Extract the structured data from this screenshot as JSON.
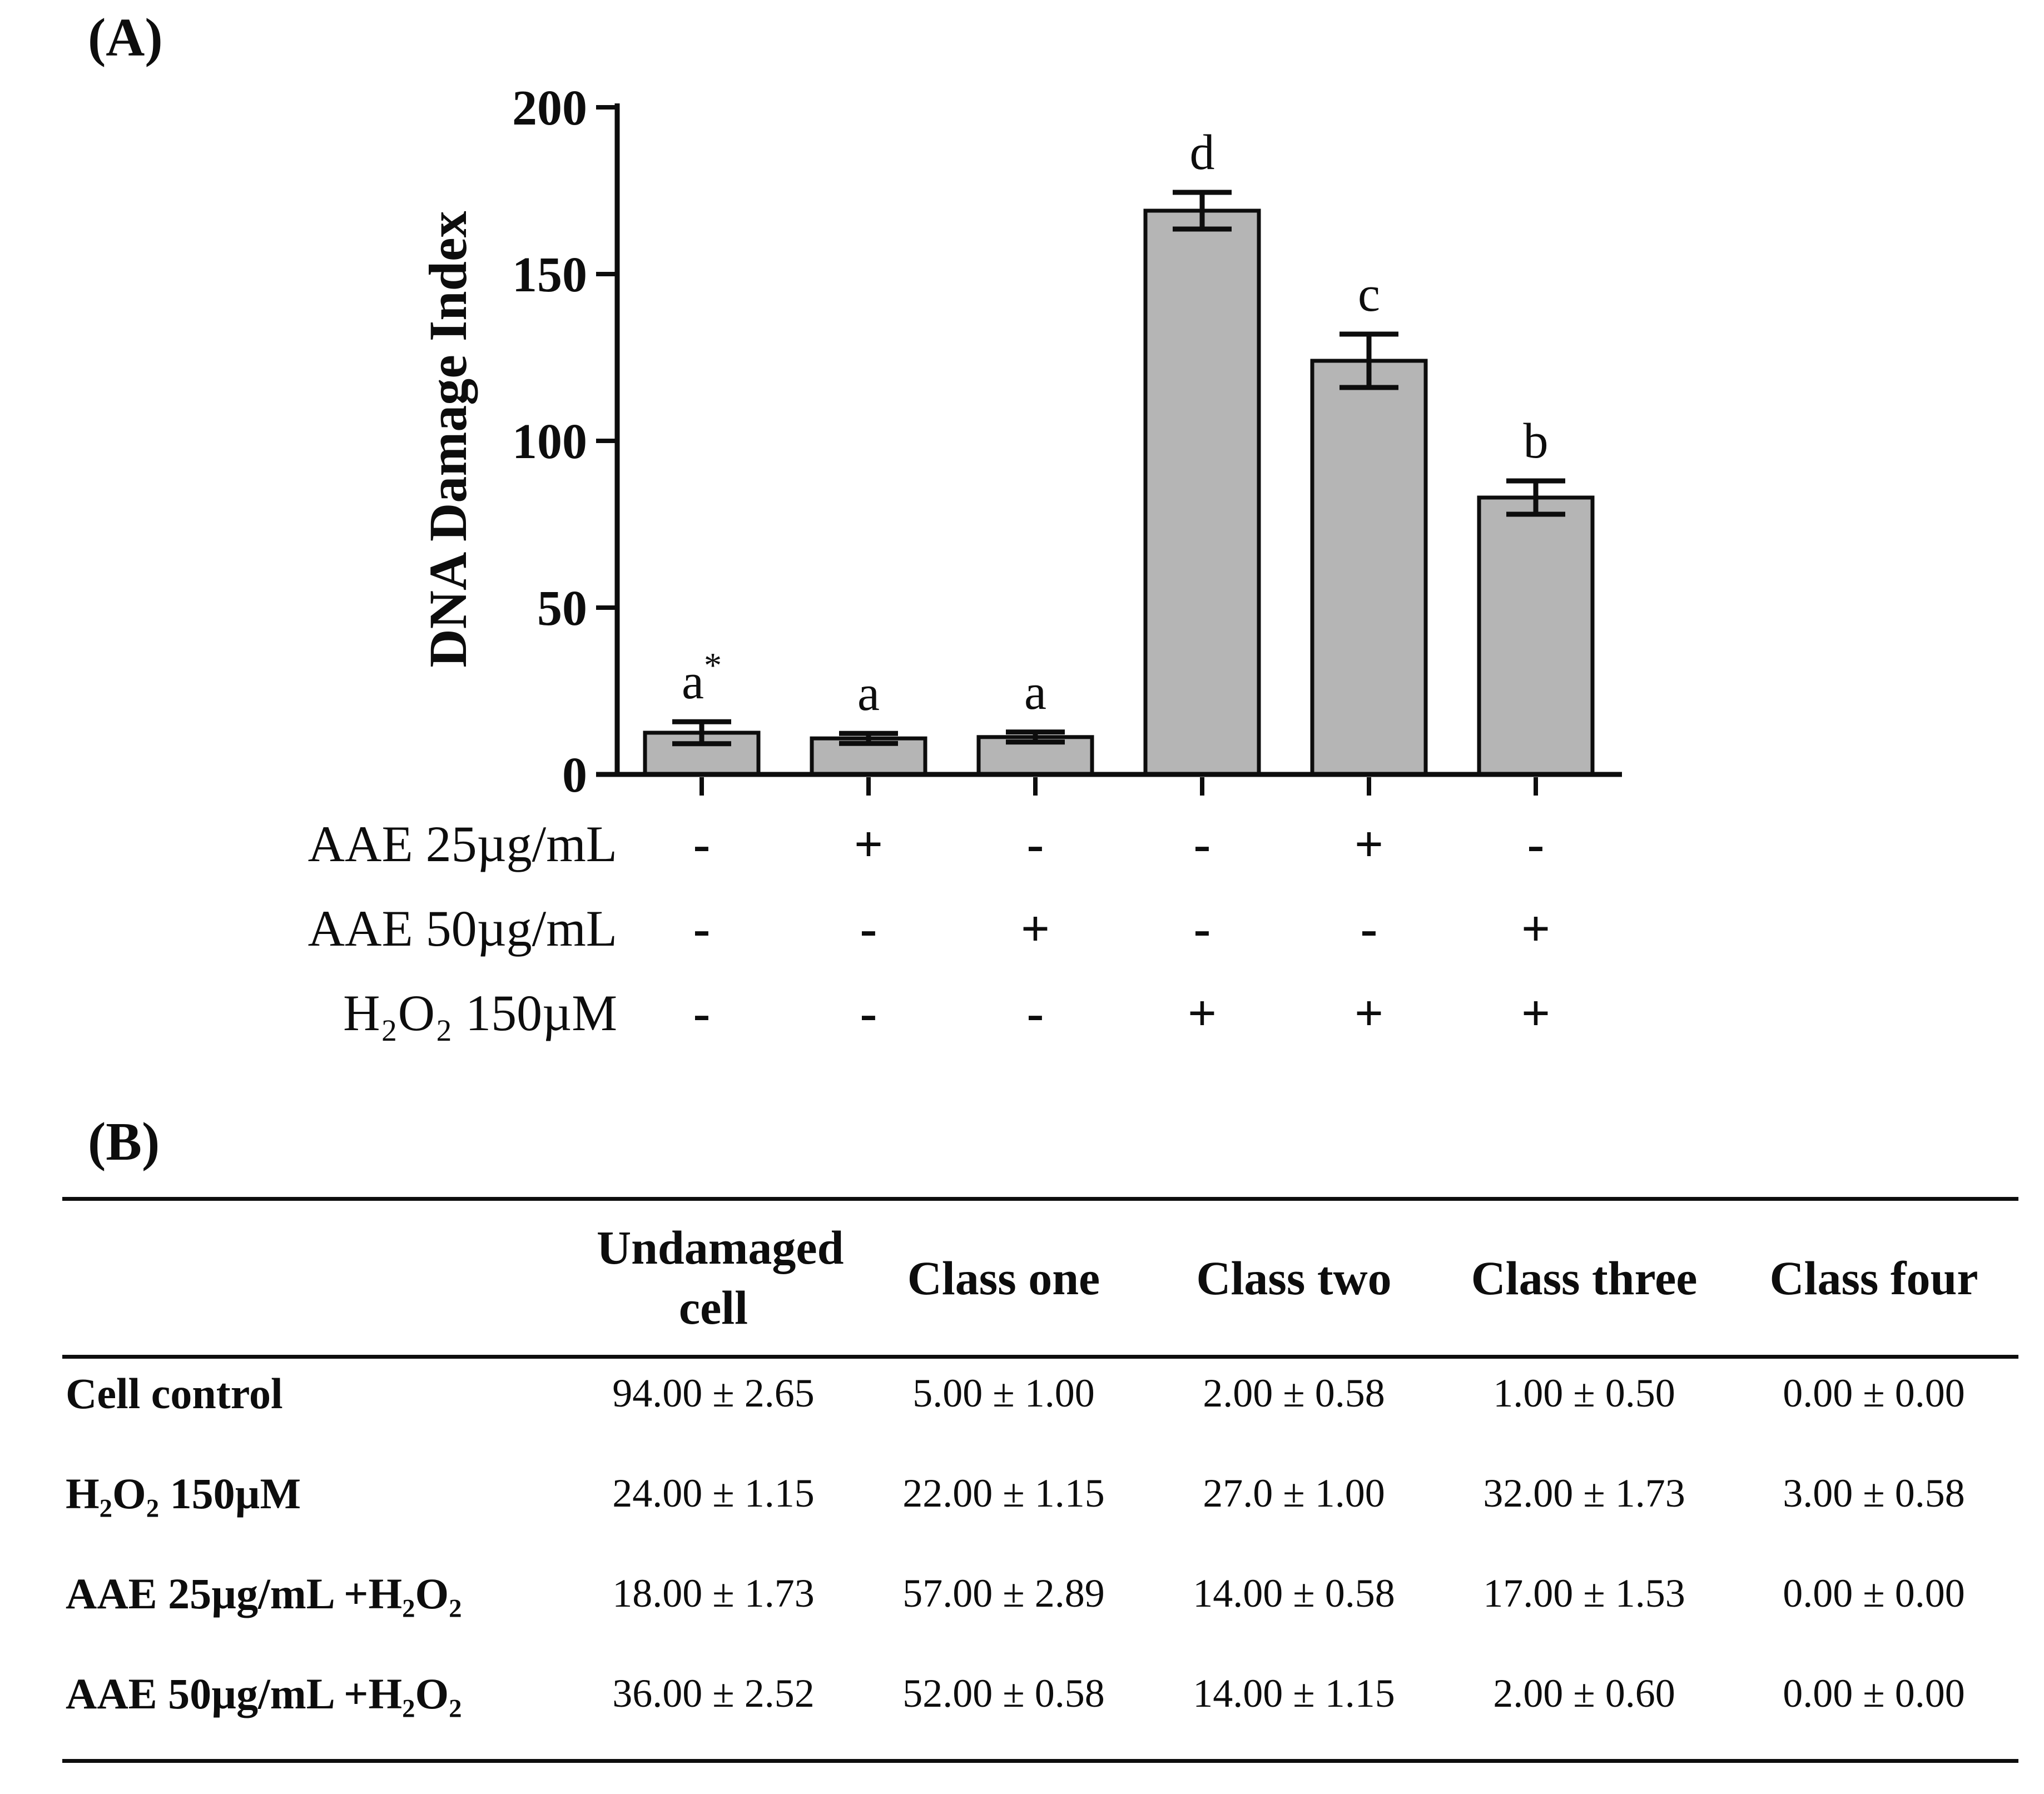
{
  "panels": {
    "a_label": "(A)",
    "b_label": "(B)"
  },
  "chart_data": {
    "type": "bar",
    "title": "",
    "xlabel": "",
    "ylabel": "DNA Damage Index",
    "ylim": [
      0,
      200
    ],
    "yticks": [
      0,
      50,
      100,
      150,
      200
    ],
    "grid": false,
    "legend": "none",
    "bar_color": "#b5b5b5",
    "bar_edge_color": "#0d0d0d",
    "values": [
      12.5,
      10.8,
      11.2,
      169,
      124,
      83
    ],
    "errors": [
      3.3,
      1.5,
      1.5,
      5.5,
      8,
      5
    ],
    "annotations": [
      "a*",
      "a",
      "a",
      "d",
      "c",
      "b"
    ],
    "conditions": [
      {
        "label": "AAE 25µg/mL",
        "signs": [
          "-",
          "+",
          "-",
          "-",
          "+",
          "-"
        ]
      },
      {
        "label": "AAE 50µg/mL",
        "signs": [
          "-",
          "-",
          "+",
          "-",
          "-",
          "+"
        ]
      },
      {
        "label": "H₂O₂ 150µM",
        "signs": [
          "-",
          "-",
          "-",
          "+",
          "+",
          "+"
        ]
      }
    ]
  },
  "table": {
    "headers": [
      "Undamaged cell",
      "Class one",
      "Class two",
      "Class three",
      "Class four"
    ],
    "rows": [
      {
        "label": "Cell control",
        "values": [
          "94.00 ± 2.65",
          "5.00 ± 1.00",
          "2.00 ± 0.58",
          "1.00 ± 0.50",
          "0.00 ± 0.00"
        ]
      },
      {
        "label": "H₂O₂ 150µM",
        "values": [
          "24.00 ± 1.15",
          "22.00 ± 1.15",
          "27.0 ± 1.00",
          "32.00 ± 1.73",
          "3.00 ± 0.58"
        ]
      },
      {
        "label": "AAE 25µg/mL +H₂O₂",
        "values": [
          "18.00 ± 1.73",
          "57.00 ± 2.89",
          "14.00 ± 0.58",
          "17.00 ± 1.53",
          "0.00 ± 0.00"
        ]
      },
      {
        "label": "AAE 50µg/mL +H₂O₂",
        "values": [
          "36.00 ± 2.52",
          "52.00 ± 0.58",
          "14.00 ± 1.15",
          "2.00 ± 0.60",
          "0.00 ± 0.00"
        ]
      }
    ]
  }
}
